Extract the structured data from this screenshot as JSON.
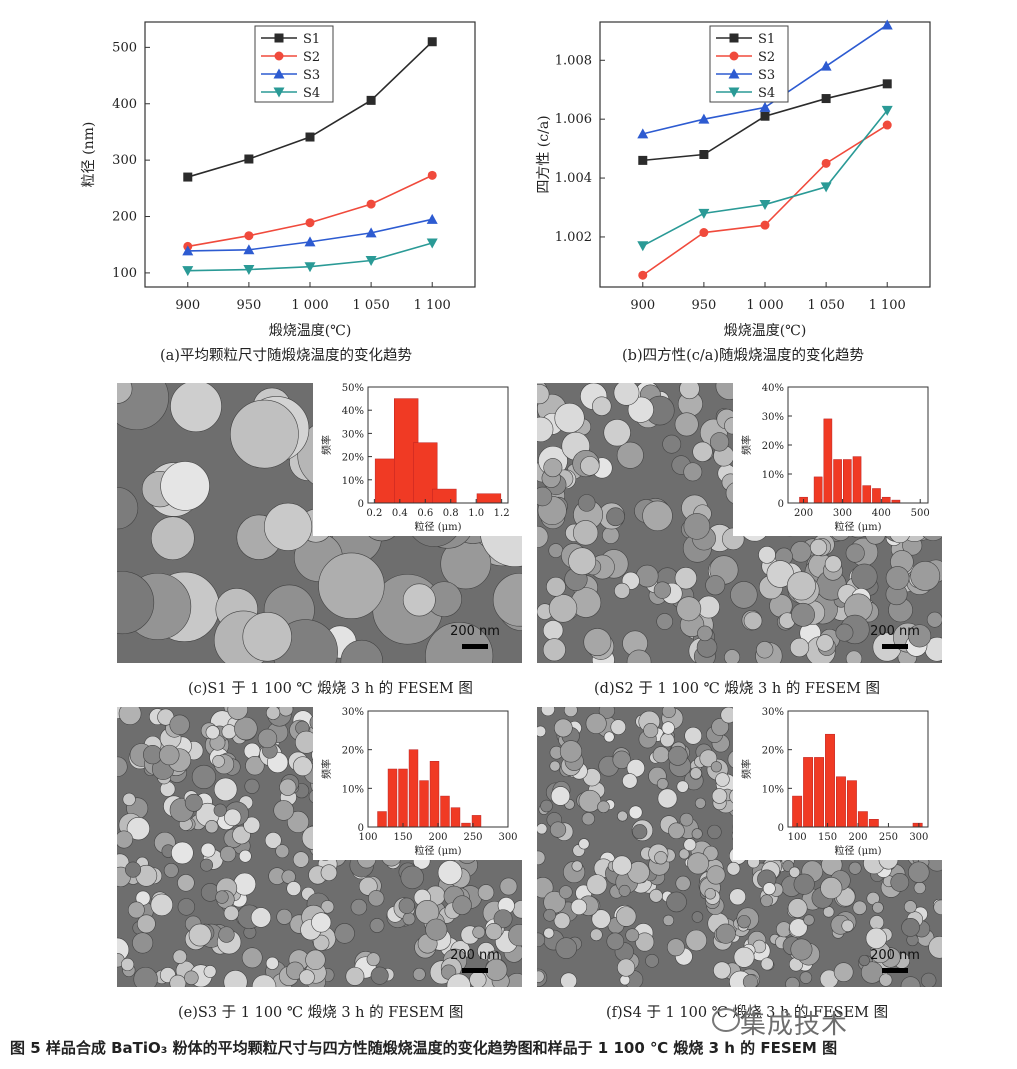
{
  "chart_data": [
    {
      "id": "a",
      "type": "line",
      "caption": "(a)平均颗粒尺寸随煅烧温度的变化趋势",
      "xlabel": "煅烧温度(℃)",
      "ylabel": "粒径 (nm)",
      "categories": [
        "900",
        "950",
        "1 000",
        "1 050",
        "1 100"
      ],
      "x": [
        900,
        950,
        1000,
        1050,
        1100
      ],
      "xlim": [
        865,
        1135
      ],
      "ylim": [
        75,
        545
      ],
      "yticks": [
        100,
        200,
        300,
        400,
        500
      ],
      "series": [
        {
          "name": "S1",
          "color": "#2b2b2b",
          "marker": "square",
          "values": [
            270,
            302,
            341,
            406,
            510
          ]
        },
        {
          "name": "S2",
          "color": "#f04a3c",
          "marker": "circle",
          "values": [
            147,
            166,
            189,
            222,
            273
          ]
        },
        {
          "name": "S3",
          "color": "#2d5bd1",
          "marker": "triangle-up",
          "values": [
            139,
            141,
            155,
            171,
            195
          ]
        },
        {
          "name": "S4",
          "color": "#2a9a96",
          "marker": "triangle-down",
          "values": [
            104,
            106,
            111,
            122,
            153
          ]
        }
      ]
    },
    {
      "id": "b",
      "type": "line",
      "caption": "(b)四方性(c/a)随煅烧温度的变化趋势",
      "xlabel": "煅烧温度(℃)",
      "ylabel": "四方性 (c/a)",
      "categories": [
        "900",
        "950",
        "1 000",
        "1 050",
        "1 100"
      ],
      "x": [
        900,
        950,
        1000,
        1050,
        1100
      ],
      "xlim": [
        865,
        1135
      ],
      "ylim": [
        1.0003,
        1.0093
      ],
      "yticks": [
        "1.002",
        "1.004",
        "1.006",
        "1.008"
      ],
      "ytick_values": [
        1.002,
        1.004,
        1.006,
        1.008
      ],
      "series": [
        {
          "name": "S1",
          "color": "#2b2b2b",
          "marker": "square",
          "values": [
            1.0046,
            1.0048,
            1.0061,
            1.0067,
            1.0072
          ]
        },
        {
          "name": "S2",
          "color": "#f04a3c",
          "marker": "circle",
          "values": [
            1.0007,
            1.00215,
            1.0024,
            1.0045,
            1.0058
          ]
        },
        {
          "name": "S3",
          "color": "#2d5bd1",
          "marker": "triangle-up",
          "values": [
            1.0055,
            1.006,
            1.0064,
            1.0078,
            1.0092
          ]
        },
        {
          "name": "S4",
          "color": "#2a9a96",
          "marker": "triangle-down",
          "values": [
            1.0017,
            1.0028,
            1.0031,
            1.0037,
            1.0063
          ]
        }
      ]
    },
    {
      "id": "c",
      "type": "bar",
      "caption": "(c)S1 于 1 100 ℃ 煅烧 3 h 的 FESEM 图",
      "xlabel": "粒径 (μm)",
      "ylabel": "频率",
      "xticks": [
        "0.2",
        "0.4",
        "0.6",
        "0.8",
        "1.0",
        "1.2"
      ],
      "xtick_values": [
        0.2,
        0.4,
        0.6,
        0.8,
        1.0,
        1.2
      ],
      "xlim": [
        0.15,
        1.25
      ],
      "bin_centers": [
        0.3,
        0.45,
        0.6,
        0.75,
        0.95,
        1.1
      ],
      "bin_width": 0.2,
      "values": [
        19,
        45,
        26,
        6,
        0,
        4
      ],
      "yticks": [
        "0",
        "10%",
        "20%",
        "30%",
        "40%",
        "50%"
      ],
      "ylim": [
        0,
        50
      ]
    },
    {
      "id": "d",
      "type": "bar",
      "caption": "(d)S2 于 1 100 ℃ 煅烧 3 h 的 FESEM 图",
      "xlabel": "粒径 (μm)",
      "ylabel": "频率",
      "xticks": [
        "200",
        "300",
        "400",
        "500"
      ],
      "xtick_values": [
        200,
        300,
        400,
        500
      ],
      "xlim": [
        160,
        520
      ],
      "bin_centers": [
        200,
        237.5,
        262.5,
        287.5,
        312.5,
        337.5,
        362.5,
        387.5,
        412.5,
        437.5,
        462.5
      ],
      "bin_width": 25,
      "values": [
        2,
        9,
        29,
        15,
        15,
        16,
        6,
        5,
        2,
        1,
        0
      ],
      "yticks": [
        "0",
        "10%",
        "20%",
        "30%",
        "40%"
      ],
      "ylim": [
        0,
        40
      ]
    },
    {
      "id": "e",
      "type": "bar",
      "caption": "(e)S3 于 1 100 ℃ 煅烧 3 h 的 FESEM 图",
      "xlabel": "粒径 (μm)",
      "ylabel": "频率",
      "xticks": [
        "100",
        "150",
        "200",
        "250",
        "300"
      ],
      "xtick_values": [
        100,
        150,
        200,
        250,
        300
      ],
      "xlim": [
        100,
        300
      ],
      "bin_centers": [
        120,
        135,
        150,
        165,
        180,
        195,
        210,
        225,
        240,
        255,
        270
      ],
      "bin_width": 15,
      "values": [
        4,
        15,
        15,
        20,
        12,
        17,
        8,
        5,
        1,
        3,
        0
      ],
      "yticks": [
        "0",
        "10%",
        "20%",
        "30%"
      ],
      "ylim": [
        0,
        30
      ]
    },
    {
      "id": "f",
      "type": "bar",
      "caption": "(f)S4 于 1 100 ℃ 煅烧 3 h 的 FESEM 图",
      "xlabel": "粒径 (μm)",
      "ylabel": "频率",
      "xticks": [
        "100",
        "150",
        "200",
        "250",
        "300"
      ],
      "xtick_values": [
        100,
        150,
        200,
        250,
        300
      ],
      "xlim": [
        85,
        315
      ],
      "bin_centers": [
        100,
        118,
        136,
        154,
        172,
        190,
        208,
        226,
        244,
        262,
        280,
        298
      ],
      "bin_width": 18,
      "values": [
        8,
        18,
        18,
        24,
        13,
        12,
        4,
        2,
        0,
        0,
        0,
        1
      ],
      "yticks": [
        "0",
        "10%",
        "20%",
        "30%"
      ],
      "ylim": [
        0,
        30
      ]
    }
  ],
  "sem": {
    "scale_label": "200 nm"
  },
  "figure_title": "图 5  样品合成 BaTiO₃ 粉体的平均颗粒尺寸与四方性随煅烧温度的变化趋势图和样品于 1 100 ℃ 煅烧 3 h 的 FESEM 图",
  "watermark": "集成技术"
}
